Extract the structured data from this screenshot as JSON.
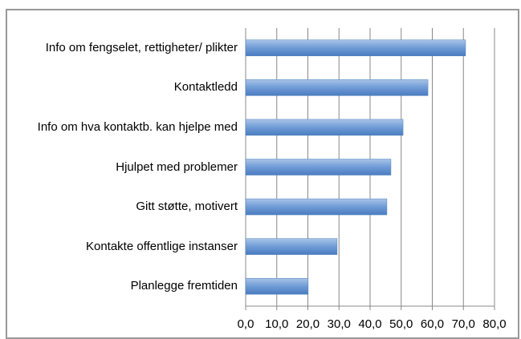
{
  "chart_data": {
    "type": "bar",
    "orientation": "horizontal",
    "categories": [
      "Info om fengselet, rettigheter/ plikter",
      "Kontaktledd",
      "Info om hva kontaktb. kan hjelpe med",
      "Hjulpet med problemer",
      "Gitt støtte, motivert",
      "Kontakte offentlige instanser",
      "Planlegge fremtiden"
    ],
    "values": [
      70.7,
      58.6,
      50.6,
      46.7,
      45.4,
      29.4,
      20.1
    ],
    "color": "#4f81bd",
    "xlim": [
      0,
      80
    ],
    "xticks": [
      {
        "value": 0,
        "label": "0,0"
      },
      {
        "value": 10,
        "label": "10,0"
      },
      {
        "value": 20,
        "label": "20,0"
      },
      {
        "value": 30,
        "label": "30,0"
      },
      {
        "value": 40,
        "label": "40,0"
      },
      {
        "value": 50,
        "label": "50,0"
      },
      {
        "value": 60,
        "label": "60,0"
      },
      {
        "value": 70,
        "label": "70,0"
      },
      {
        "value": 80,
        "label": "80,0"
      }
    ],
    "grid": true
  }
}
